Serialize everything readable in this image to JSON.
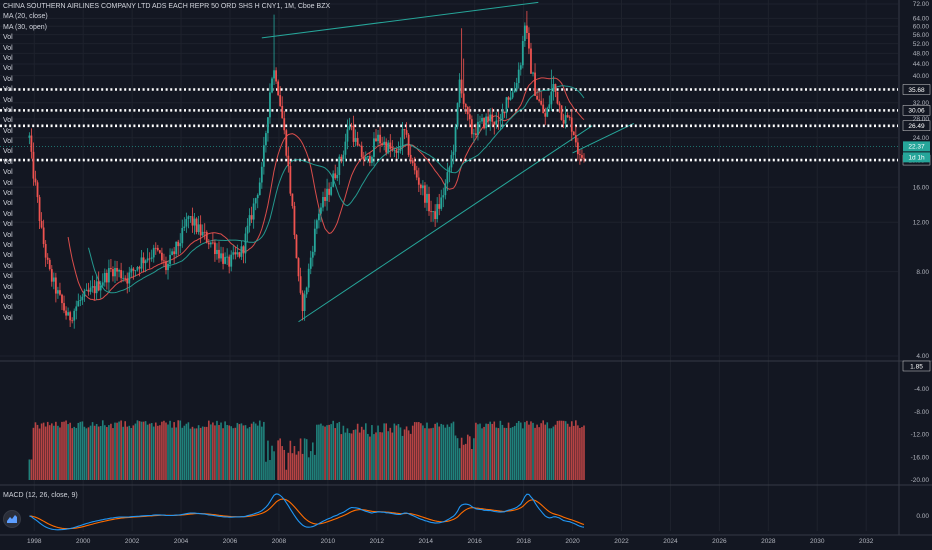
{
  "legend": {
    "title": "CHINA SOUTHERN AIRLINES COMPANY LTD ADS EACH REPR 50 ORD SHS H CNY1, 1M, Cboe BZX",
    "ma20": "MA (20, close)",
    "ma30": "MA (30, open)",
    "vol_label": "Vol",
    "vol_count": 28,
    "macd": "MACD (12, 26, close, 9)"
  },
  "colors": {
    "background": "#131722",
    "up": "#26a69a",
    "down": "#ef5350",
    "ma20": "#ef5350",
    "ma30": "#26a69a",
    "channel": "#26a69a",
    "level": "#ffffff",
    "macd_line": "#2196f3",
    "signal_line": "#ff6d00"
  },
  "chart_data": [
    {
      "type": "candlestick",
      "name": "price",
      "scale": "log",
      "ylim": [
        4,
        72
      ],
      "yticks": [
        72,
        64,
        60,
        56,
        52,
        48,
        44,
        40,
        36,
        32,
        28,
        24,
        20,
        16,
        12,
        8,
        4
      ],
      "yticks_fmt": [
        "72.00",
        "64.00",
        "60.00",
        "56.00",
        "52.00",
        "48.00",
        "44.00",
        "40.00",
        "36.00",
        "32.00",
        "28.00",
        "24.00",
        "20.00",
        "16.00",
        "12.00",
        "8.00",
        "4.00"
      ],
      "xlim": [
        1996.6,
        2033.3
      ],
      "xticks": [
        "1998",
        "2000",
        "2002",
        "2004",
        "2006",
        "2008",
        "2010",
        "2012",
        "2014",
        "2016",
        "2018",
        "2020",
        "2022",
        "2024",
        "2026",
        "2028",
        "2030",
        "2032"
      ],
      "anchors": [
        [
          1997.8,
          24.0
        ],
        [
          1997.9,
          19.5
        ],
        [
          1998.1,
          15.0
        ],
        [
          1998.3,
          11.0
        ],
        [
          1998.6,
          8.0
        ],
        [
          1999.0,
          6.5
        ],
        [
          1999.4,
          5.4
        ],
        [
          1999.8,
          6.2
        ],
        [
          2000.5,
          7.0
        ],
        [
          2001.2,
          8.2
        ],
        [
          2001.8,
          7.6
        ],
        [
          2002.4,
          8.8
        ],
        [
          2003.0,
          9.5
        ],
        [
          2003.4,
          8.2
        ],
        [
          2004.0,
          10.5
        ],
        [
          2004.3,
          12.5
        ],
        [
          2004.8,
          11.0
        ],
        [
          2005.3,
          10.0
        ],
        [
          2005.9,
          8.5
        ],
        [
          2006.5,
          9.5
        ],
        [
          2006.9,
          13.0
        ],
        [
          2007.3,
          18.0
        ],
        [
          2007.55,
          30.0
        ],
        [
          2007.7,
          40.0
        ],
        [
          2007.85,
          42.0
        ],
        [
          2008.05,
          32.0
        ],
        [
          2008.3,
          22.0
        ],
        [
          2008.6,
          12.0
        ],
        [
          2008.85,
          6.5
        ],
        [
          2009.0,
          6.0
        ],
        [
          2009.3,
          9.0
        ],
        [
          2009.6,
          13.0
        ],
        [
          2009.9,
          14.5
        ],
        [
          2010.3,
          18.0
        ],
        [
          2010.6,
          21.0
        ],
        [
          2010.9,
          27.5
        ],
        [
          2011.2,
          22.0
        ],
        [
          2011.6,
          19.5
        ],
        [
          2012.0,
          24.0
        ],
        [
          2012.4,
          22.5
        ],
        [
          2012.8,
          20.5
        ],
        [
          2013.1,
          25.5
        ],
        [
          2013.5,
          18.5
        ],
        [
          2013.9,
          15.5
        ],
        [
          2014.3,
          12.5
        ],
        [
          2014.6,
          14.0
        ],
        [
          2014.9,
          17.5
        ],
        [
          2015.2,
          24.0
        ],
        [
          2015.4,
          40.0
        ],
        [
          2015.6,
          30.0
        ],
        [
          2015.9,
          25.0
        ],
        [
          2016.3,
          27.0
        ],
        [
          2016.7,
          28.5
        ],
        [
          2017.0,
          26.0
        ],
        [
          2017.3,
          33.5
        ],
        [
          2017.6,
          35.0
        ],
        [
          2017.9,
          46.0
        ],
        [
          2018.05,
          62.0
        ],
        [
          2018.25,
          45.0
        ],
        [
          2018.5,
          34.5
        ],
        [
          2018.9,
          28.0
        ],
        [
          2019.2,
          37.0
        ],
        [
          2019.4,
          33.0
        ],
        [
          2019.6,
          28.5
        ],
        [
          2019.9,
          27.5
        ],
        [
          2020.1,
          24.5
        ],
        [
          2020.3,
          20.0
        ],
        [
          2020.5,
          21.5
        ]
      ],
      "spikes": [
        [
          2007.8,
          66.0
        ],
        [
          2018.1,
          68.0
        ],
        [
          2015.45,
          59.0
        ],
        [
          2015.55,
          46.0
        ],
        [
          2018.3,
          52.0
        ],
        [
          2019.15,
          42.0
        ]
      ],
      "last_price": 22.37,
      "countdown": "1d 1h",
      "horizontal_levels": [
        35.68,
        30.06,
        26.49,
        19.99
      ],
      "horizontal_levels_fmt": [
        "35.68",
        "30.06",
        "26.49",
        "19.99"
      ],
      "channel_upper": [
        [
          2007.3,
          54.5
        ],
        [
          2018.6,
          73.0
        ]
      ],
      "channel_lower": [
        [
          2008.8,
          5.3
        ],
        [
          2020.8,
          26.5
        ]
      ],
      "channel_parallel": [
        [
          2020.0,
          21.2
        ],
        [
          2022.5,
          27.0
        ]
      ]
    },
    {
      "type": "volume",
      "name": "volume",
      "ylim": [
        -20,
        0
      ],
      "yticks": [
        0,
        -4,
        -8,
        -12,
        -16,
        -20
      ],
      "yticks_fmt": [
        "0.00",
        "-4.00",
        "-8.00",
        "-12.00",
        "-16.00",
        "-20.00"
      ],
      "side_tag": "1.85"
    },
    {
      "type": "line",
      "name": "macd",
      "yticks": [
        0
      ],
      "yticks_fmt": [
        "0.00"
      ],
      "series": [
        {
          "name": "MACD"
        },
        {
          "name": "Signal"
        }
      ]
    }
  ]
}
